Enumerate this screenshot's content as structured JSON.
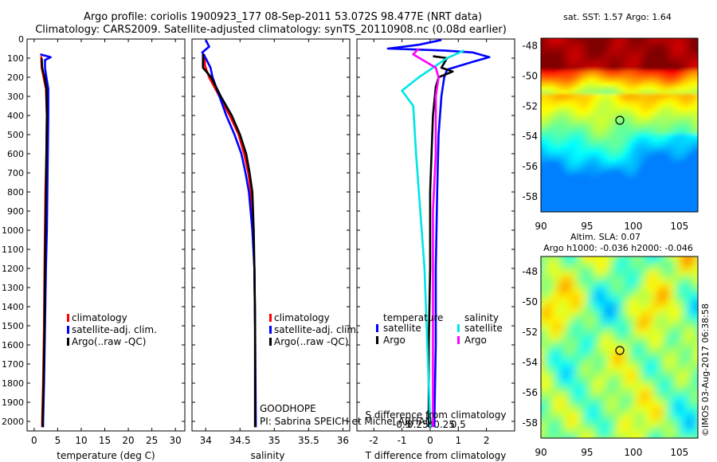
{
  "header": {
    "line1": "Argo profile: coriolis 1900923_177 08-Sep-2011 53.072S 98.477E (NRT data)",
    "line2": "Climatology: CARS2009. Satellite-adjusted climatology: synTS_20110908.nc (0.08d earlier)"
  },
  "colors": {
    "climatology": "#ff0000",
    "satellite": "#0000ff",
    "argo": "#000000",
    "sal_satellite": "#00e5e5",
    "sal_argo": "#ff00ff"
  },
  "chart_data": [
    {
      "type": "line",
      "xlabel": "temperature (deg C)",
      "ylim": [
        2050,
        0
      ],
      "yticks": [
        0,
        100,
        200,
        300,
        400,
        500,
        600,
        700,
        800,
        900,
        1000,
        1100,
        1200,
        1300,
        1400,
        1500,
        1600,
        1700,
        1800,
        1900,
        2000
      ],
      "xlim": [
        -1.5,
        32
      ],
      "xticks": [
        0,
        5,
        10,
        15,
        20,
        25,
        30
      ],
      "legend": [
        "climatology",
        "satellite-adj. clim.",
        "Argo(..raw -QC)"
      ],
      "series": [
        {
          "name": "climatology",
          "color": "#ff0000",
          "points": [
            [
              1.5,
              90
            ],
            [
              1.6,
              150
            ],
            [
              2.0,
              200
            ],
            [
              2.5,
              260
            ],
            [
              2.7,
              400
            ],
            [
              2.6,
              600
            ],
            [
              2.4,
              800
            ],
            [
              2.3,
              1000
            ],
            [
              2.2,
              1200
            ],
            [
              2.1,
              1500
            ],
            [
              1.9,
              1800
            ],
            [
              1.7,
              2000
            ],
            [
              1.7,
              2030
            ]
          ]
        },
        {
          "name": "satellite-adj. clim.",
          "color": "#0000ff",
          "points": [
            [
              1.3,
              80
            ],
            [
              3.5,
              95
            ],
            [
              2.3,
              110
            ],
            [
              2.3,
              150
            ],
            [
              2.6,
              200
            ],
            [
              3.0,
              260
            ],
            [
              3.0,
              400
            ],
            [
              2.9,
              600
            ],
            [
              2.8,
              800
            ],
            [
              2.7,
              1000
            ],
            [
              2.5,
              1200
            ],
            [
              2.3,
              1500
            ],
            [
              2.1,
              1800
            ],
            [
              1.9,
              2000
            ],
            [
              1.9,
              2030
            ]
          ]
        },
        {
          "name": "Argo(..raw -QC)",
          "color": "#000000",
          "points": [
            [
              1.6,
              100
            ],
            [
              1.7,
              150
            ],
            [
              2.2,
              200
            ],
            [
              2.6,
              260
            ],
            [
              2.7,
              400
            ],
            [
              2.6,
              600
            ],
            [
              2.5,
              800
            ],
            [
              2.4,
              1000
            ],
            [
              2.3,
              1200
            ],
            [
              2.2,
              1500
            ],
            [
              2.0,
              1800
            ],
            [
              1.8,
              2000
            ],
            [
              1.8,
              2030
            ]
          ]
        }
      ]
    },
    {
      "type": "line",
      "xlabel": "salinity",
      "ylim": [
        2050,
        0
      ],
      "xlim": [
        33.8,
        36.1
      ],
      "xticks": [
        34,
        34.5,
        35,
        35.5,
        36
      ],
      "legend": [
        "climatology",
        "satellite-adj. clim.",
        "Argo(..raw -QC)"
      ],
      "annotations": [
        "GOODHOPE",
        "PI: Sabrina SPEICH et Michel ARHAN"
      ],
      "series": [
        {
          "name": "climatology",
          "color": "#ff0000",
          "points": [
            [
              33.98,
              80
            ],
            [
              33.99,
              140
            ],
            [
              34.05,
              200
            ],
            [
              34.2,
              300
            ],
            [
              34.35,
              400
            ],
            [
              34.48,
              500
            ],
            [
              34.56,
              600
            ],
            [
              34.62,
              700
            ],
            [
              34.66,
              800
            ],
            [
              34.69,
              1000
            ],
            [
              34.71,
              1200
            ],
            [
              34.72,
              1500
            ],
            [
              34.72,
              2000
            ],
            [
              34.72,
              2030
            ]
          ]
        },
        {
          "name": "satellite-adj. clim.",
          "color": "#0000ff",
          "points": [
            [
              34.0,
              5
            ],
            [
              34.05,
              40
            ],
            [
              33.95,
              70
            ],
            [
              34.0,
              100
            ],
            [
              34.07,
              150
            ],
            [
              34.1,
              200
            ],
            [
              34.2,
              300
            ],
            [
              34.3,
              400
            ],
            [
              34.42,
              500
            ],
            [
              34.52,
              600
            ],
            [
              34.58,
              700
            ],
            [
              34.63,
              800
            ],
            [
              34.68,
              1000
            ],
            [
              34.71,
              1200
            ],
            [
              34.72,
              1500
            ],
            [
              34.73,
              2000
            ],
            [
              34.73,
              2030
            ]
          ]
        },
        {
          "name": "Argo(..raw -QC)",
          "color": "#000000",
          "points": [
            [
              33.96,
              80
            ],
            [
              33.96,
              150
            ],
            [
              34.08,
              200
            ],
            [
              34.22,
              300
            ],
            [
              34.38,
              400
            ],
            [
              34.5,
              500
            ],
            [
              34.59,
              600
            ],
            [
              34.64,
              700
            ],
            [
              34.68,
              800
            ],
            [
              34.7,
              1000
            ],
            [
              34.71,
              1200
            ],
            [
              34.72,
              1500
            ],
            [
              34.72,
              2000
            ],
            [
              34.72,
              2030
            ]
          ]
        }
      ]
    },
    {
      "type": "line",
      "xlabel": "T difference from climatology",
      "x2label": "S difference from climatology",
      "ylim": [
        2050,
        0
      ],
      "xlim": [
        -2.6,
        3.0
      ],
      "xticks": [
        -2,
        -1,
        0,
        1,
        2
      ],
      "x2ticks": [
        -0.5,
        -0.25,
        0,
        0.25,
        0.5
      ],
      "legend_titles": [
        "temperature",
        "salinity"
      ],
      "legend": [
        "satellite",
        "Argo",
        "satellite",
        "Argo"
      ],
      "series": [
        {
          "name": "satellite",
          "group": "temperature",
          "color": "#0000ff",
          "points": [
            [
              0.4,
              5
            ],
            [
              -0.4,
              30
            ],
            [
              -1.5,
              50
            ],
            [
              0.5,
              60
            ],
            [
              1.5,
              70
            ],
            [
              2.1,
              95
            ],
            [
              1.5,
              120
            ],
            [
              0.6,
              160
            ],
            [
              0.5,
              200
            ],
            [
              0.4,
              300
            ],
            [
              0.3,
              500
            ],
            [
              0.25,
              800
            ],
            [
              0.2,
              1200
            ],
            [
              0.2,
              1600
            ],
            [
              0.15,
              2000
            ],
            [
              0.15,
              2030
            ]
          ]
        },
        {
          "name": "Argo",
          "group": "temperature",
          "color": "#000000",
          "points": [
            [
              0.1,
              90
            ],
            [
              0.6,
              100
            ],
            [
              0.4,
              150
            ],
            [
              0.8,
              170
            ],
            [
              0.3,
              200
            ],
            [
              0.2,
              250
            ],
            [
              0.1,
              400
            ],
            [
              0.0,
              800
            ],
            [
              0.0,
              1200
            ],
            [
              -0.05,
              1600
            ],
            [
              -0.05,
              2030
            ]
          ]
        },
        {
          "name": "satellite",
          "group": "salinity",
          "color": "#00e5e5",
          "points": [
            [
              0.6,
              60
            ],
            [
              0.3,
              100
            ],
            [
              -0.2,
              200
            ],
            [
              -0.5,
              270
            ],
            [
              -0.3,
              350
            ],
            [
              -0.25,
              600
            ],
            [
              -0.2,
              800
            ],
            [
              -0.15,
              1000
            ],
            [
              -0.1,
              1200
            ],
            [
              -0.05,
              1600
            ],
            [
              0.0,
              2000
            ],
            [
              0.0,
              2030
            ]
          ]
        },
        {
          "name": "Argo",
          "group": "salinity",
          "color": "#ff00ff",
          "points": [
            [
              -0.2,
              50
            ],
            [
              -0.3,
              80
            ],
            [
              0.1,
              150
            ],
            [
              0.15,
              200
            ],
            [
              0.1,
              300
            ],
            [
              0.1,
              600
            ],
            [
              0.05,
              900
            ],
            [
              0.05,
              1300
            ],
            [
              0.05,
              1700
            ],
            [
              0.05,
              2030
            ]
          ]
        }
      ]
    },
    {
      "type": "heatmap",
      "title": "sat. SST: 1.57 Argo: 1.64",
      "xlim": [
        90,
        107
      ],
      "ylim": [
        -59,
        -47.5
      ],
      "xticks": [
        90,
        95,
        100,
        105
      ],
      "yticks": [
        -48,
        -50,
        -52,
        -54,
        -56,
        -58
      ],
      "marker": [
        98.5,
        -53.1
      ]
    },
    {
      "type": "heatmap",
      "title": "Altim. SLA: 0.07",
      "subtitle": "Argo h1000: -0.036 h2000: -0.046",
      "xlim": [
        90,
        107
      ],
      "ylim": [
        -59,
        -47
      ],
      "xticks": [
        90,
        95,
        100,
        105
      ],
      "yticks": [
        -48,
        -50,
        -52,
        -54,
        -56,
        -58
      ],
      "marker": [
        98.5,
        -53.1
      ]
    }
  ],
  "credit": "©IMOS 03-Aug-2017 06:38:58"
}
